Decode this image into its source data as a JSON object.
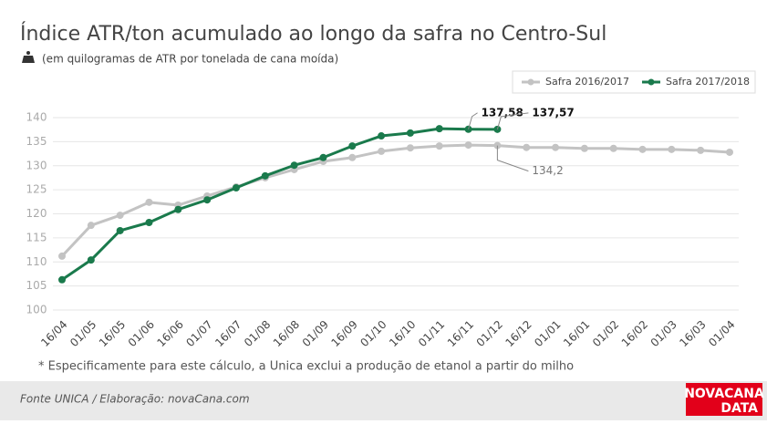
{
  "chart_data": {
    "type": "line",
    "title": "Índice ATR/ton acumulado ao longo da safra no Centro-Sul",
    "subtitle": "(em quilogramas de ATR por tonelada de cana moída)",
    "note": "* Especificamente para este cálculo, a Unica exclui a produção de etanol a partir do milho",
    "source": "Fonte UNICA / Elaboração: novaCana.com",
    "brand": [
      "NOVACANA",
      "DATA"
    ],
    "categories": [
      "16/04",
      "01/05",
      "16/05",
      "01/06",
      "16/06",
      "01/07",
      "16/07",
      "01/08",
      "16/08",
      "01/09",
      "16/09",
      "01/10",
      "16/10",
      "01/11",
      "16/11",
      "01/12",
      "16/12",
      "01/01",
      "16/01",
      "01/02",
      "16/02",
      "01/03",
      "16/03",
      "01/04"
    ],
    "series": [
      {
        "name": "Safra 2016/2017",
        "color": "#c3c3c3",
        "values": [
          111.2,
          117.6,
          119.7,
          122.4,
          121.8,
          123.7,
          125.6,
          127.5,
          129.2,
          130.9,
          131.7,
          133.0,
          133.7,
          134.1,
          134.3,
          134.2,
          133.8,
          133.8,
          133.6,
          133.6,
          133.4,
          133.4,
          133.2,
          132.8
        ],
        "value_labels": [
          null,
          null,
          null,
          null,
          null,
          null,
          null,
          null,
          null,
          null,
          null,
          null,
          null,
          null,
          null,
          "134,2",
          null,
          null,
          null,
          null,
          null,
          null,
          null,
          null
        ]
      },
      {
        "name": "Safra 2017/2018",
        "color": "#1a7a4c",
        "values": [
          106.3,
          110.4,
          116.5,
          118.2,
          120.9,
          122.9,
          125.4,
          127.9,
          130.1,
          131.7,
          134.1,
          136.2,
          136.8,
          137.7,
          137.58,
          137.57,
          null,
          null,
          null,
          null,
          null,
          null,
          null,
          null
        ],
        "value_labels": [
          null,
          null,
          null,
          null,
          null,
          null,
          null,
          null,
          null,
          null,
          null,
          null,
          null,
          null,
          "137,58",
          "137,57",
          null,
          null,
          null,
          null,
          null,
          null,
          null,
          null
        ]
      }
    ],
    "ylim": [
      100,
      140
    ],
    "yticks": [
      100,
      105,
      110,
      115,
      120,
      125,
      130,
      135,
      140
    ],
    "grid": true
  }
}
